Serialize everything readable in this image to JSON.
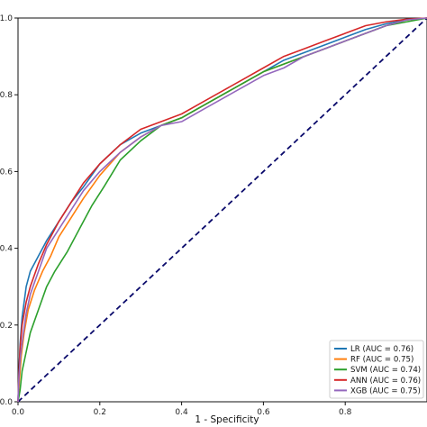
{
  "chart_data": {
    "type": "line",
    "title": "",
    "xlabel": "1 - Specificity",
    "ylabel": "",
    "xlim": [
      0,
      1
    ],
    "ylim": [
      0,
      1
    ],
    "x_ticks": [
      "0.0",
      "0.2",
      "0.4",
      "0.6",
      "0.8"
    ],
    "y_ticks": [
      "0.0",
      "0.2",
      "0.4",
      "0.6",
      "0.8",
      "1.0"
    ],
    "grid": false,
    "legend_position": "bottom-right",
    "reference_line": {
      "x": [
        0,
        1
      ],
      "y": [
        0,
        1
      ],
      "color": "#0a0a6b",
      "style": "dashed"
    },
    "series": [
      {
        "name": "LR (AUC = 0.76)",
        "color": "#1f77b4",
        "x": [
          0,
          0.002,
          0.005,
          0.01,
          0.02,
          0.03,
          0.05,
          0.07,
          0.1,
          0.13,
          0.16,
          0.2,
          0.25,
          0.3,
          0.35,
          0.4,
          0.45,
          0.5,
          0.55,
          0.6,
          0.65,
          0.7,
          0.75,
          0.8,
          0.85,
          0.9,
          0.95,
          1.0
        ],
        "y": [
          0,
          0.06,
          0.15,
          0.22,
          0.3,
          0.34,
          0.38,
          0.42,
          0.47,
          0.52,
          0.56,
          0.62,
          0.67,
          0.7,
          0.72,
          0.74,
          0.77,
          0.8,
          0.83,
          0.86,
          0.89,
          0.91,
          0.93,
          0.95,
          0.97,
          0.985,
          0.995,
          1.0
        ]
      },
      {
        "name": "RF (AUC = 0.75)",
        "color": "#ff7f0e",
        "x": [
          0,
          0.003,
          0.008,
          0.015,
          0.025,
          0.04,
          0.06,
          0.08,
          0.1,
          0.13,
          0.16,
          0.2,
          0.25,
          0.3,
          0.35,
          0.4,
          0.45,
          0.5,
          0.55,
          0.6,
          0.65,
          0.7,
          0.75,
          0.8,
          0.85,
          0.9,
          0.95,
          1.0
        ],
        "y": [
          0,
          0.05,
          0.12,
          0.18,
          0.24,
          0.29,
          0.34,
          0.38,
          0.43,
          0.48,
          0.53,
          0.59,
          0.65,
          0.69,
          0.72,
          0.74,
          0.77,
          0.8,
          0.83,
          0.86,
          0.88,
          0.9,
          0.92,
          0.94,
          0.96,
          0.98,
          0.995,
          1.0
        ]
      },
      {
        "name": "SVM (AUC = 0.74)",
        "color": "#2ca02c",
        "x": [
          0,
          0.005,
          0.01,
          0.02,
          0.03,
          0.05,
          0.07,
          0.09,
          0.12,
          0.15,
          0.18,
          0.21,
          0.25,
          0.3,
          0.35,
          0.4,
          0.45,
          0.5,
          0.55,
          0.6,
          0.65,
          0.7,
          0.75,
          0.8,
          0.85,
          0.9,
          0.95,
          1.0
        ],
        "y": [
          0,
          0.03,
          0.08,
          0.13,
          0.18,
          0.24,
          0.3,
          0.34,
          0.39,
          0.45,
          0.51,
          0.56,
          0.63,
          0.68,
          0.72,
          0.74,
          0.77,
          0.8,
          0.83,
          0.86,
          0.88,
          0.9,
          0.92,
          0.94,
          0.96,
          0.98,
          0.99,
          1.0
        ]
      },
      {
        "name": "ANN (AUC = 0.76)",
        "color": "#d62728",
        "x": [
          0,
          0.002,
          0.005,
          0.01,
          0.02,
          0.03,
          0.05,
          0.07,
          0.1,
          0.13,
          0.16,
          0.2,
          0.25,
          0.3,
          0.35,
          0.4,
          0.45,
          0.5,
          0.55,
          0.6,
          0.65,
          0.7,
          0.75,
          0.8,
          0.85,
          0.9,
          0.95,
          1.0
        ],
        "y": [
          0,
          0.07,
          0.14,
          0.2,
          0.26,
          0.3,
          0.36,
          0.41,
          0.47,
          0.52,
          0.57,
          0.62,
          0.67,
          0.71,
          0.73,
          0.75,
          0.78,
          0.81,
          0.84,
          0.87,
          0.9,
          0.92,
          0.94,
          0.96,
          0.98,
          0.99,
          0.997,
          1.0
        ]
      },
      {
        "name": "XGB (AUC = 0.75)",
        "color": "#9467bd",
        "x": [
          0,
          0.002,
          0.006,
          0.012,
          0.02,
          0.03,
          0.05,
          0.07,
          0.1,
          0.13,
          0.16,
          0.2,
          0.25,
          0.3,
          0.35,
          0.4,
          0.45,
          0.5,
          0.55,
          0.6,
          0.65,
          0.7,
          0.75,
          0.8,
          0.85,
          0.9,
          0.95,
          1.0
        ],
        "y": [
          0,
          0.06,
          0.12,
          0.17,
          0.23,
          0.28,
          0.34,
          0.4,
          0.45,
          0.5,
          0.55,
          0.6,
          0.65,
          0.69,
          0.72,
          0.73,
          0.76,
          0.79,
          0.82,
          0.85,
          0.87,
          0.9,
          0.92,
          0.94,
          0.96,
          0.98,
          0.995,
          1.0
        ]
      }
    ]
  }
}
